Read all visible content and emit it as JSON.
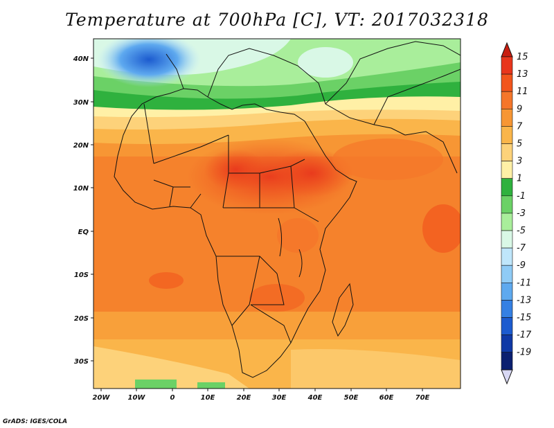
{
  "title": "Temperature at 700hPa [C], VT: 2017032318",
  "lat_ticks": [
    "40N",
    "30N",
    "20N",
    "10N",
    "EQ",
    "10S",
    "20S",
    "30S"
  ],
  "lon_ticks": [
    "20W",
    "10W",
    "0",
    "10E",
    "20E",
    "30E",
    "40E",
    "50E",
    "60E",
    "70E"
  ],
  "colorbar": {
    "labels": [
      "15",
      "13",
      "11",
      "9",
      "7",
      "5",
      "3",
      "1",
      "-1",
      "-3",
      "-5",
      "-7",
      "-9",
      "-11",
      "-13",
      "-15",
      "-17",
      "-19"
    ],
    "colors": [
      "#e8361c",
      "#f2551c",
      "#f5762a",
      "#f79634",
      "#fab54a",
      "#fdd27a",
      "#fff0a6",
      "#2fb13e",
      "#6bd166",
      "#a9ee9b",
      "#d9f8e6",
      "#bfe6fb",
      "#8fcbf6",
      "#5ea9ef",
      "#3580e3",
      "#1c5bcf",
      "#0f39a6",
      "#0a1f70"
    ],
    "top_arrow_color": "#c81e10",
    "bottom_arrow_color": "#d8d8f4"
  },
  "credit": "GrADS: IGES/COLA"
}
